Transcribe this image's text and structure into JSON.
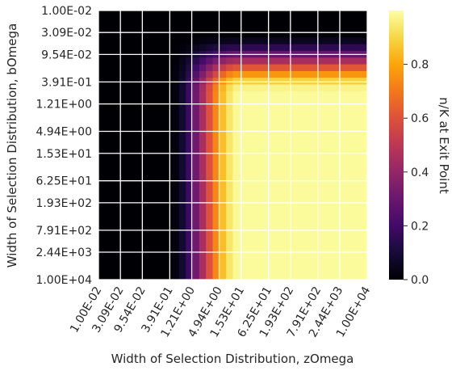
{
  "chart_data": {
    "type": "heatmap",
    "title": "",
    "xlabel": "Width of Selection Distribution, zOmega",
    "ylabel": "Width of Selection Distribution, bOmega",
    "colorbar_label": "n/K at Exit Point",
    "colormap": "inferno",
    "x_tick_labels": [
      "1.00E-02",
      "3.09E-02",
      "9.54E-02",
      "3.91E-01",
      "1.21E+00",
      "4.94E+00",
      "1.53E+01",
      "6.25E+01",
      "1.93E+02",
      "7.91E+02",
      "2.44E+03",
      "1.00E+04"
    ],
    "y_tick_labels": [
      "1.00E-02",
      "3.09E-02",
      "9.54E-02",
      "3.91E-01",
      "1.21E+00",
      "4.94E+00",
      "1.53E+01",
      "6.25E+01",
      "1.93E+02",
      "7.91E+02",
      "2.44E+03",
      "1.00E+04"
    ],
    "x_range": [
      0.01,
      10000
    ],
    "y_range": [
      0.01,
      10000
    ],
    "scale": "log",
    "grid": true,
    "colorbar_ticks": [
      "0.0",
      "0.2",
      "0.4",
      "0.6",
      "0.8"
    ],
    "value_range": [
      0,
      1
    ],
    "approx_transition_zOmega": 0.39,
    "approx_transition_bOmega": 0.031,
    "max_value": 0.99,
    "grid_color": "#ffffff"
  }
}
